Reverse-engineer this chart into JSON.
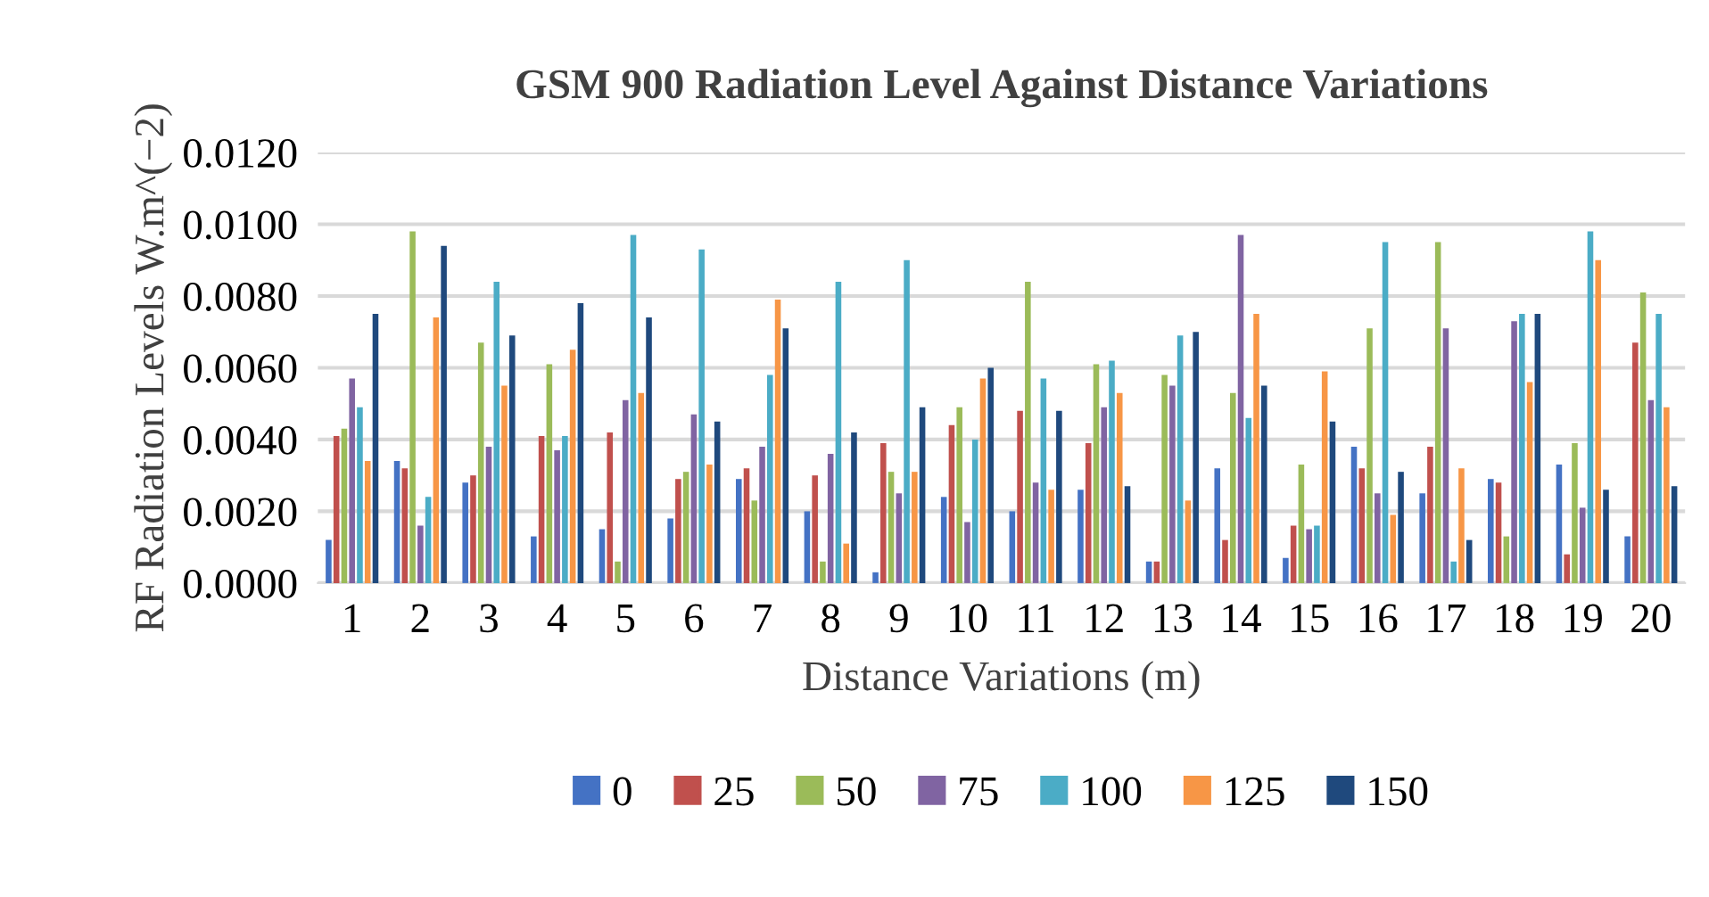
{
  "chart_data": {
    "type": "bar",
    "title": "GSM 900 Radiation Level Against Distance Variations",
    "xlabel": "Distance Variations (m)",
    "ylabel": "RF Radiation Levels W.m^(−2)",
    "categories": [
      "1",
      "2",
      "3",
      "4",
      "5",
      "6",
      "7",
      "8",
      "9",
      "10",
      "11",
      "12",
      "13",
      "14",
      "15",
      "16",
      "17",
      "18",
      "19",
      "20"
    ],
    "series": [
      {
        "name": "0",
        "color": "#4472c4",
        "values": [
          0.0012,
          0.0034,
          0.0028,
          0.0013,
          0.0015,
          0.0018,
          0.0029,
          0.002,
          0.0003,
          0.0024,
          0.002,
          0.0026,
          0.0006,
          0.0032,
          0.0007,
          0.0038,
          0.0025,
          0.0029,
          0.0033,
          0.0013
        ]
      },
      {
        "name": "25",
        "color": "#c0504d",
        "values": [
          0.0041,
          0.0032,
          0.003,
          0.0041,
          0.0042,
          0.0029,
          0.0032,
          0.003,
          0.0039,
          0.0044,
          0.0048,
          0.0039,
          0.0006,
          0.0012,
          0.0016,
          0.0032,
          0.0038,
          0.0028,
          0.0008,
          0.0067
        ]
      },
      {
        "name": "50",
        "color": "#9bbb59",
        "values": [
          0.0043,
          0.0098,
          0.0067,
          0.0061,
          0.0006,
          0.0031,
          0.0023,
          0.0006,
          0.0031,
          0.0049,
          0.0084,
          0.0061,
          0.0058,
          0.0053,
          0.0033,
          0.0071,
          0.0095,
          0.0013,
          0.0039,
          0.0081
        ]
      },
      {
        "name": "75",
        "color": "#8064a2",
        "values": [
          0.0057,
          0.0016,
          0.0038,
          0.0037,
          0.0051,
          0.0047,
          0.0038,
          0.0036,
          0.0025,
          0.0017,
          0.0028,
          0.0049,
          0.0055,
          0.0097,
          0.0015,
          0.0025,
          0.0071,
          0.0073,
          0.0021,
          0.0051
        ]
      },
      {
        "name": "100",
        "color": "#4bacc6",
        "values": [
          0.0049,
          0.0024,
          0.0084,
          0.0041,
          0.0097,
          0.0093,
          0.0058,
          0.0084,
          0.009,
          0.004,
          0.0057,
          0.0062,
          0.0069,
          0.0046,
          0.0016,
          0.0095,
          0.0006,
          0.0075,
          0.0098,
          0.0075
        ]
      },
      {
        "name": "125",
        "color": "#f79646",
        "values": [
          0.0034,
          0.0074,
          0.0055,
          0.0065,
          0.0053,
          0.0033,
          0.0079,
          0.0011,
          0.0031,
          0.0057,
          0.0026,
          0.0053,
          0.0023,
          0.0075,
          0.0059,
          0.0019,
          0.0032,
          0.0056,
          0.009,
          0.0049
        ]
      },
      {
        "name": "150",
        "color": "#1f497d",
        "values": [
          0.0075,
          0.0094,
          0.0069,
          0.0078,
          0.0074,
          0.0045,
          0.0071,
          0.0042,
          0.0049,
          0.006,
          0.0048,
          0.0027,
          0.007,
          0.0055,
          0.0045,
          0.0031,
          0.0012,
          0.0075,
          0.0026,
          0.0027
        ]
      }
    ],
    "ylim": [
      0,
      0.012
    ],
    "yticks": [
      {
        "value": 0,
        "label": "0.0000"
      },
      {
        "value": 0.002,
        "label": "0.0020"
      },
      {
        "value": 0.004,
        "label": "0.0040"
      },
      {
        "value": 0.006,
        "label": "0.0060"
      },
      {
        "value": 0.008,
        "label": "0.0080"
      },
      {
        "value": 0.01,
        "label": "0.0100"
      },
      {
        "value": 0.012,
        "label": "0.0120"
      }
    ],
    "grid": "y",
    "legend": "bottom"
  }
}
